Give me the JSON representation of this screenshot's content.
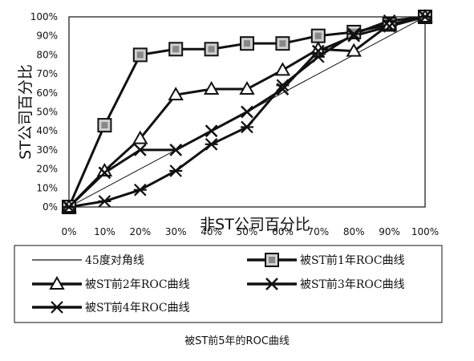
{
  "chart_data": {
    "type": "line",
    "ylabel": "ST公司百分比",
    "xlabel": "非ST公司百分比",
    "x": [
      0,
      10,
      20,
      30,
      40,
      50,
      60,
      70,
      80,
      90,
      100
    ],
    "xticks": [
      "0%",
      "10%",
      "20%",
      "30%",
      "40%",
      "50%",
      "60%",
      "70%",
      "80%",
      "90%",
      "100%"
    ],
    "yticks": [
      "0%",
      "10%",
      "20%",
      "30%",
      "40%",
      "50%",
      "60%",
      "70%",
      "80%",
      "90%",
      "100%"
    ],
    "xlim": [
      0,
      100
    ],
    "ylim": [
      0,
      100
    ],
    "grid": false,
    "legend_position": "bottom",
    "series": [
      {
        "name": "45度对角线",
        "marker": "none",
        "values": [
          0,
          10,
          20,
          30,
          40,
          50,
          60,
          70,
          80,
          90,
          100
        ]
      },
      {
        "name": "被ST前1年ROC曲线",
        "marker": "square",
        "values": [
          0,
          43,
          80,
          83,
          83,
          86,
          86,
          90,
          92,
          96,
          100
        ]
      },
      {
        "name": "被ST前2年ROC曲线",
        "marker": "triangle",
        "values": [
          0,
          19,
          36,
          59,
          62,
          62,
          72,
          83,
          82,
          96,
          100
        ]
      },
      {
        "name": "被ST前3年ROC曲线",
        "marker": "x",
        "values": [
          0,
          18,
          30,
          30,
          40,
          50,
          62,
          82,
          90,
          95,
          100
        ]
      },
      {
        "name": "被ST前4年ROC曲线",
        "marker": "star",
        "values": [
          0,
          3,
          9,
          19,
          33,
          42,
          64,
          79,
          91,
          98,
          100
        ]
      }
    ]
  },
  "caption": "被ST前5年的ROC曲线",
  "colors": {
    "line": "#111111",
    "marker_fill": "#cfcfcf",
    "background": "#ffffff"
  }
}
